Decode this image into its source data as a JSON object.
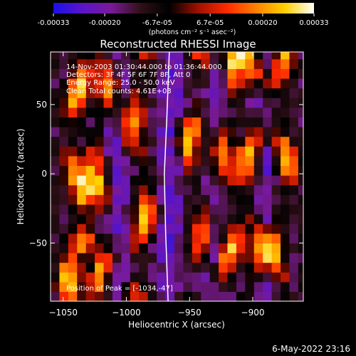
{
  "chart_data": [
    {
      "type": "colorbar",
      "ticks": [
        -0.00033,
        -0.0002,
        -6.7e-05,
        6.7e-05,
        0.0002,
        0.00033
      ],
      "tick_labels": [
        "-0.00033",
        "-0.00020",
        "-6.7e-05",
        "6.7e-05",
        "0.00020",
        "0.00033"
      ],
      "unit_label": "(photons cm⁻² s⁻¹ asec⁻²)",
      "range": [
        -0.00033,
        0.00033
      ],
      "colors": [
        "#1a10e8",
        "#5a14c8",
        "#7a1a9a",
        "#301018",
        "#000000",
        "#a01000",
        "#ff2a00",
        "#ff8000",
        "#ffd000",
        "#ffffff"
      ]
    },
    {
      "type": "heatmap",
      "title": "Reconstructed RHESSI Image",
      "xlabel": "Heliocentric X (arcsec)",
      "ylabel": "Heliocentric Y (arcsec)",
      "xlim": [
        -1060,
        -860
      ],
      "ylim": [
        -92,
        88
      ],
      "x_ticks": [
        -1050,
        -1000,
        -950,
        -900
      ],
      "x_tick_labels": [
        "−1050",
        "−1000",
        "−950",
        "−900"
      ],
      "y_ticks": [
        50,
        0,
        -50
      ],
      "y_tick_labels": [
        "50",
        "0",
        "−50"
      ],
      "annotations": [
        "14-Nov-2003 01:30:44.000 to 01:36:44.000",
        "Detectors: 3F 4F 5F 6F 7F 8F, Att 0",
        "Energy Range: 25.0 - 50.0 keV",
        "Clean    Total counts: 4.61E+03"
      ],
      "peak_label": "Position of Peak = [-1034,-47]",
      "peak": [
        -1034,
        -47
      ],
      "limb_curve": [
        [
          -966,
          88
        ],
        [
          -968,
          40
        ],
        [
          -970,
          0
        ],
        [
          -969,
          -40
        ],
        [
          -967,
          -92
        ]
      ],
      "bright_ridges_x": [
        -1040,
        -1020,
        -990,
        -945,
        -920,
        -900,
        -878
      ],
      "dim_regions_x": [
        -1008,
        -965,
        -932,
        -890
      ]
    }
  ],
  "footer": {
    "date": "6-May-2022 23:16"
  }
}
